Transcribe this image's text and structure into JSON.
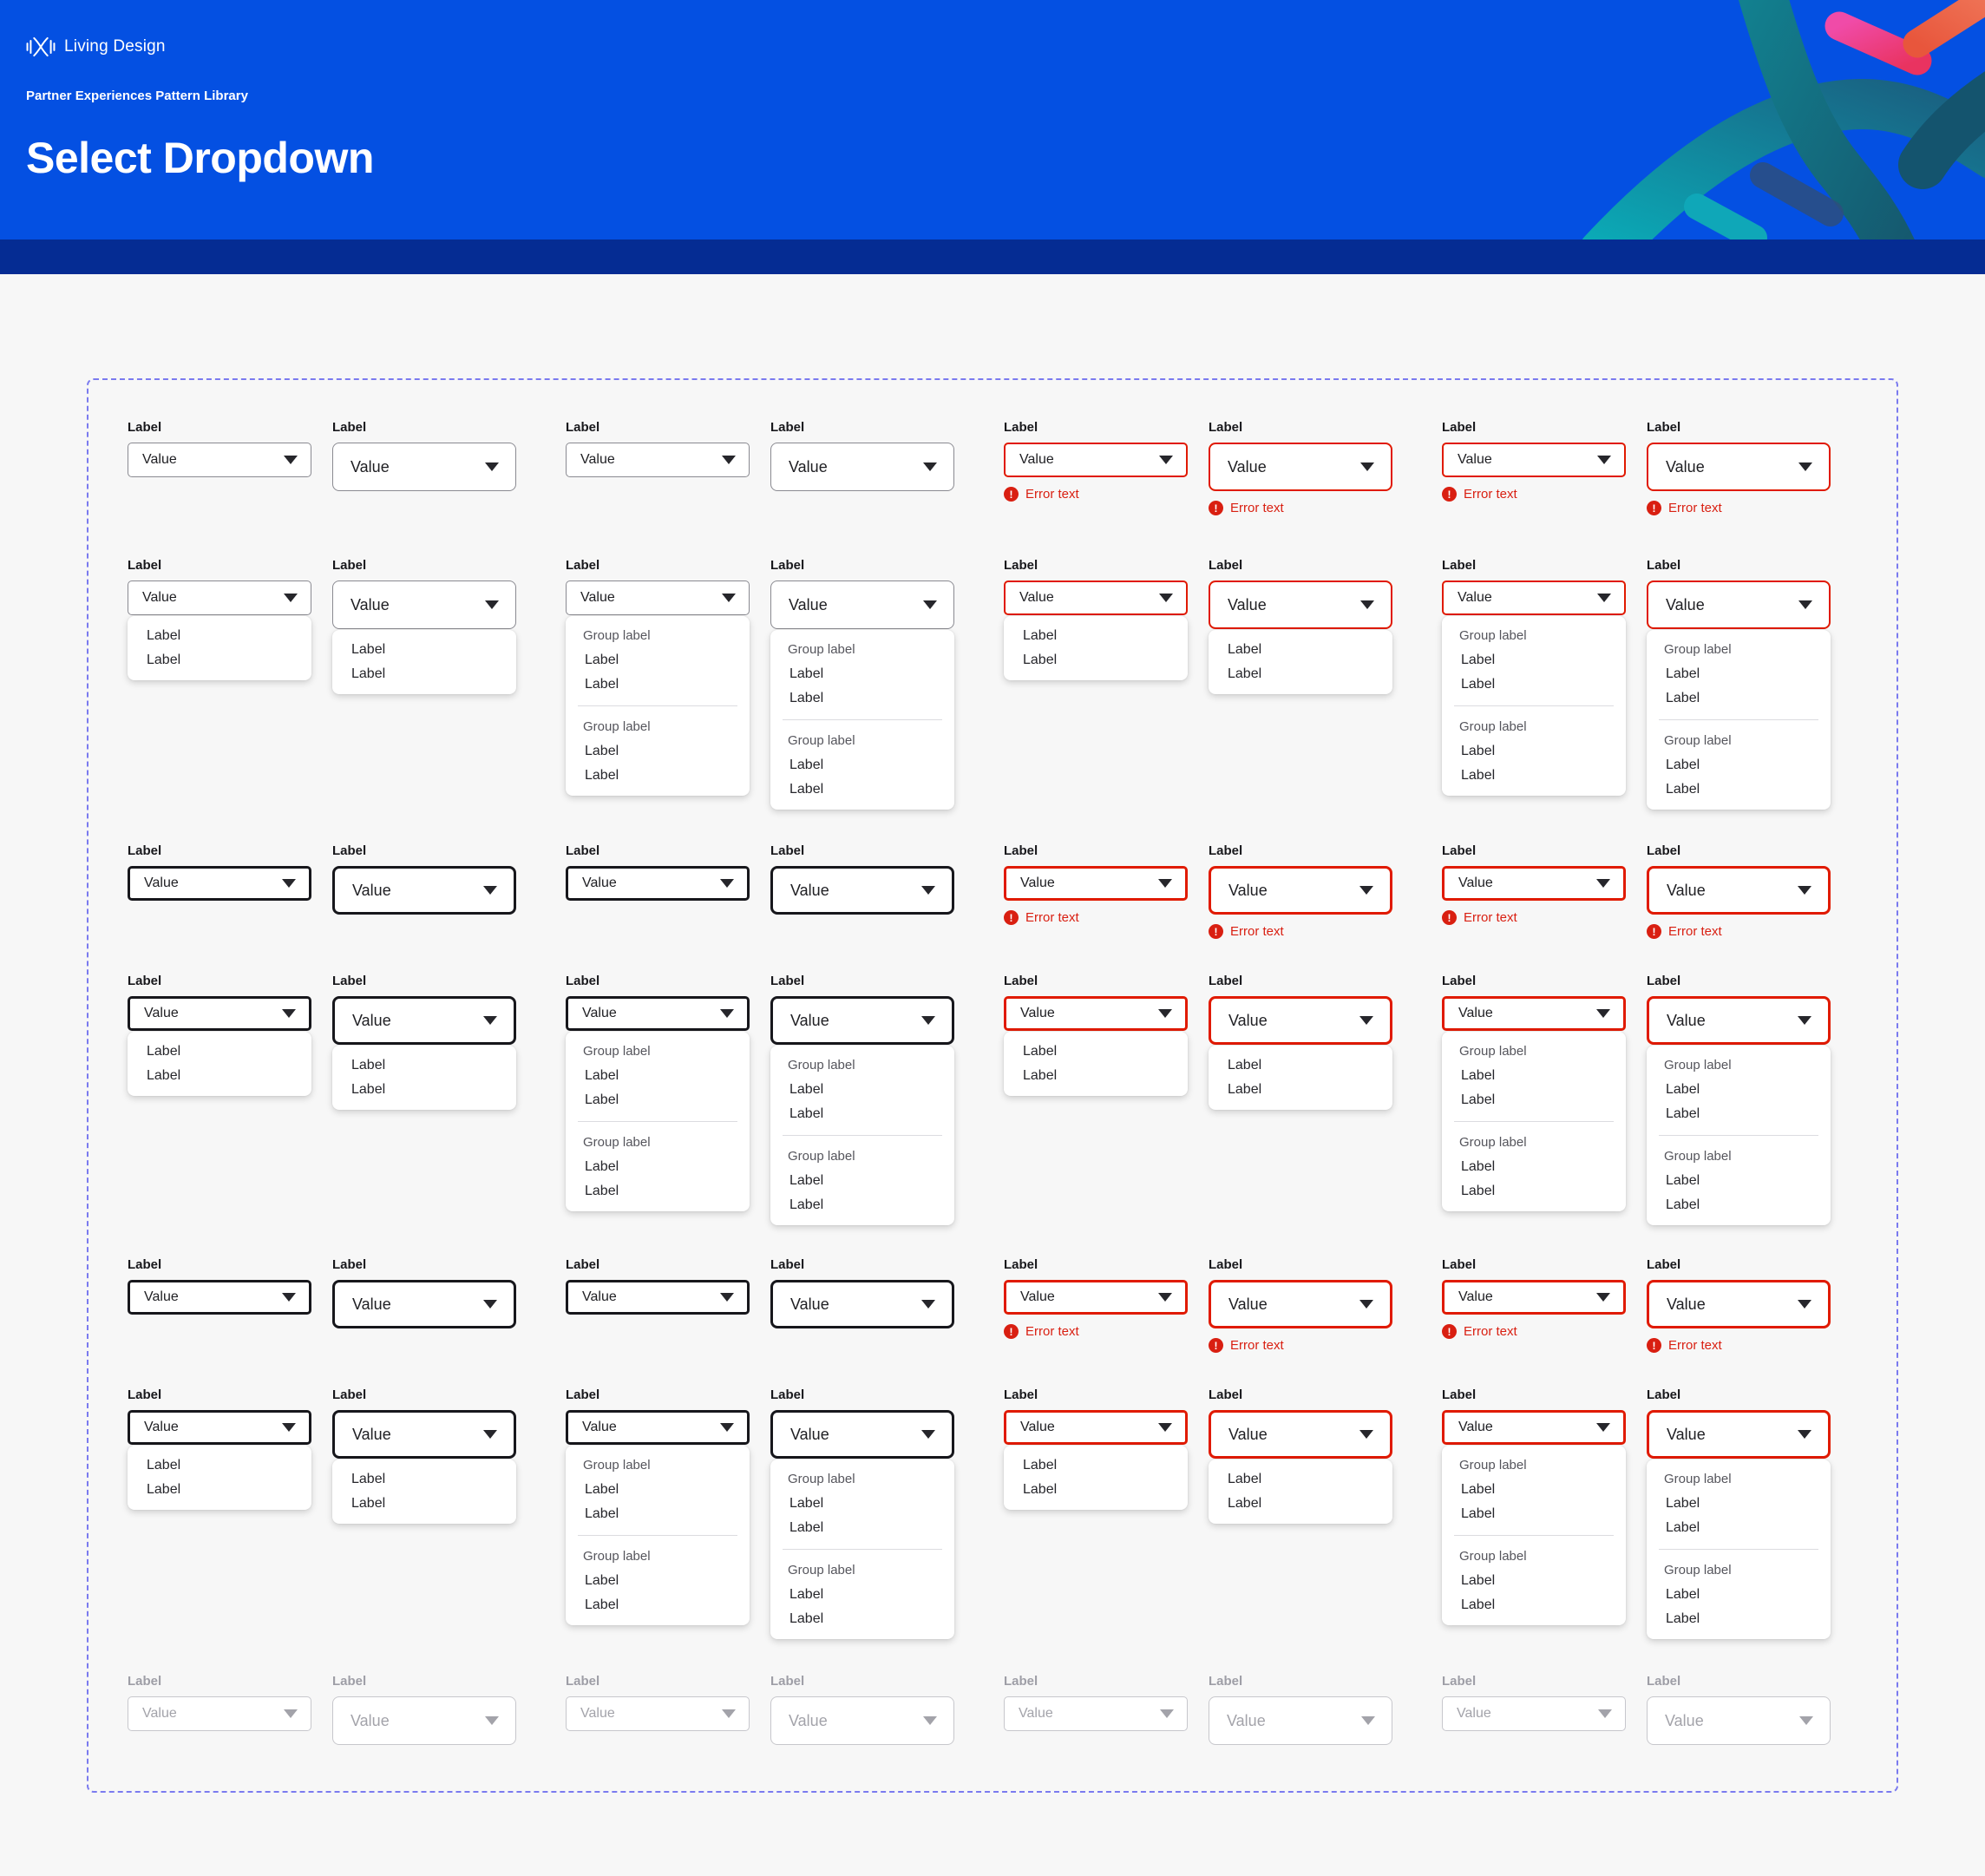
{
  "header": {
    "brand": "Living Design",
    "subtitle": "Partner Experiences Pattern Library",
    "title": "Select Dropdown"
  },
  "colors": {
    "header_blue": "#0450E2",
    "band_navy": "#052C93",
    "page_bg": "#F7F7F7",
    "dashed_outline": "#7B7BEF",
    "border_default": "#8A8A91",
    "border_strong": "#17171C",
    "border_error": "#E01A00",
    "border_disabled": "#C7C7CC",
    "error_red": "#D91F11",
    "text_value": "#202024",
    "text_label": "#18181C",
    "text_disabled": "#A3A3AA",
    "text_group_label": "#55555C",
    "menu_bg": "#FFFFFF"
  },
  "field": {
    "label": "Label",
    "value": "Value",
    "error_text": "Error text"
  },
  "menu": {
    "simple_items": [
      "Label",
      "Label"
    ],
    "groups": [
      {
        "label": "Group label",
        "items": [
          "Label",
          "Label"
        ]
      },
      {
        "label": "Group label",
        "items": [
          "Label",
          "Label"
        ]
      }
    ]
  },
  "grid": {
    "rows": [
      {
        "name": "default-closed",
        "border": "default",
        "open": false
      },
      {
        "name": "default-open",
        "border": "default",
        "open": true
      },
      {
        "name": "hover-closed",
        "border": "strong",
        "open": false
      },
      {
        "name": "hover-open",
        "border": "strong",
        "open": true
      },
      {
        "name": "focus-closed",
        "border": "strong",
        "open": false
      },
      {
        "name": "focus-open",
        "border": "strong",
        "open": true
      },
      {
        "name": "disabled",
        "border": "disabled",
        "open": false
      }
    ],
    "columns": [
      {
        "size": "small",
        "menu": "simple",
        "error": false
      },
      {
        "size": "medium",
        "menu": "simple",
        "error": false
      },
      {
        "size": "small",
        "menu": "grouped",
        "error": false
      },
      {
        "size": "medium",
        "menu": "grouped",
        "error": false
      },
      {
        "size": "small",
        "menu": "simple",
        "error": true
      },
      {
        "size": "medium",
        "menu": "simple",
        "error": true
      },
      {
        "size": "small",
        "menu": "grouped",
        "error": true
      },
      {
        "size": "medium",
        "menu": "grouped",
        "error": true
      }
    ]
  }
}
